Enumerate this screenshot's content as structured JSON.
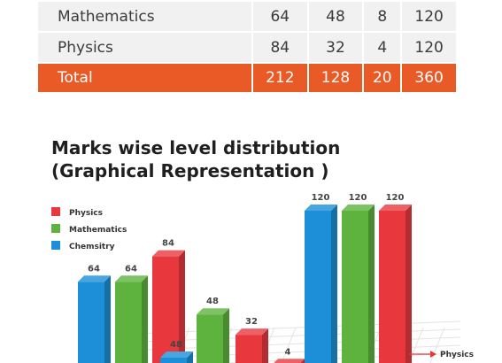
{
  "table": {
    "rows": [
      {
        "label": "Mathematics",
        "values": [
          "64",
          "48",
          "8",
          "120"
        ]
      },
      {
        "label": "Physics",
        "values": [
          "84",
          "32",
          "4",
          "120"
        ]
      }
    ],
    "total": {
      "label": "Total",
      "values": [
        "212",
        "128",
        "20",
        "360"
      ]
    }
  },
  "heading": {
    "line1": "Marks wise level distribution",
    "line2": "(Graphical Representation )"
  },
  "colors": {
    "physics": "#e8383d",
    "mathematics": "#5db33e",
    "chemistry": "#1c8fd8",
    "total_row": "#ea5a26"
  },
  "chart_data": {
    "type": "bar",
    "series": [
      {
        "name": "Physics",
        "values": [
          84,
          32,
          4,
          120
        ]
      },
      {
        "name": "Mathematics",
        "values": [
          64,
          48,
          null,
          120
        ]
      },
      {
        "name": "Chemsitry",
        "values": [
          64,
          48,
          null,
          120
        ]
      }
    ],
    "legend_position": "top-left",
    "axis_label": "Physics",
    "ylim": [
      0,
      120
    ]
  }
}
